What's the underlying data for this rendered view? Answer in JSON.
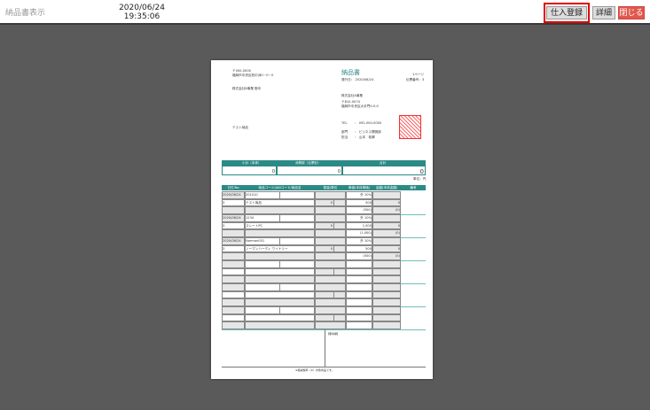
{
  "header": {
    "title": "納品書表示",
    "date": "2020/06/24",
    "time": "19:35:06",
    "buttons": {
      "purchase": "仕入登録",
      "detail": "詳細",
      "close": "閉じる"
    }
  },
  "doc": {
    "recipient": {
      "zip": "〒000-0000",
      "address": "福岡市中央区西中洲0－0－0",
      "company": "株式会社B事業 御中",
      "subject": "テスト納品"
    },
    "title": "納品書",
    "page": "1ページ",
    "issue_date": "発行日： 2020/06/24",
    "slip_no": "伝票番号：3",
    "sender": {
      "company": "株式会社A事業",
      "zip": "〒810-0074",
      "address": "福岡市中央区大手門0-0-0",
      "tel_label": "TEL",
      "tel": "： 092-000-0000",
      "dept_label": "部門",
      "dept": "： ビジネス開発部",
      "staff_label": "担当",
      "staff": "： 山本　祐輝"
    },
    "summary": {
      "labels": [
        "小計（本体）",
        "消費税（伝票計）",
        "合計"
      ],
      "values": [
        "0",
        "0",
        "0"
      ],
      "unit": "単位：円"
    },
    "columns": [
      "日付/No",
      "商品コード/JANコード/商品名",
      "数量/単位",
      "単価(本体単価)",
      "金額(本体金額)",
      "備考"
    ],
    "rows": [
      {
        "date": "2020/06/24",
        "code": "201010",
        "tax": "外 10%",
        "no": "3",
        "name": "テスト商品",
        "qty": "0",
        "price": "500",
        "amount": "0",
        "price_in": "(500)",
        "amount_in": "(0)"
      },
      {
        "date": "2020/06/24",
        "code": "1234",
        "tax": "外 10%",
        "no": "3",
        "name": "スレートPC",
        "qty": "0",
        "price": "1,000",
        "amount": "0",
        "price_in": "(1,000)",
        "amount_in": "(0)"
      },
      {
        "date": "2020/06/24",
        "code": "Norman001",
        "tax": "外 10%",
        "no": "3",
        "name": "ノーマンハーディ ワイナリー",
        "qty": "0",
        "price": "500",
        "amount": "0",
        "price_in": "(500)",
        "amount_in": "(0)"
      },
      {},
      {},
      {}
    ],
    "remarks_label": "【備考欄】",
    "footer": "※軽減税率（※）対象商品です。"
  }
}
